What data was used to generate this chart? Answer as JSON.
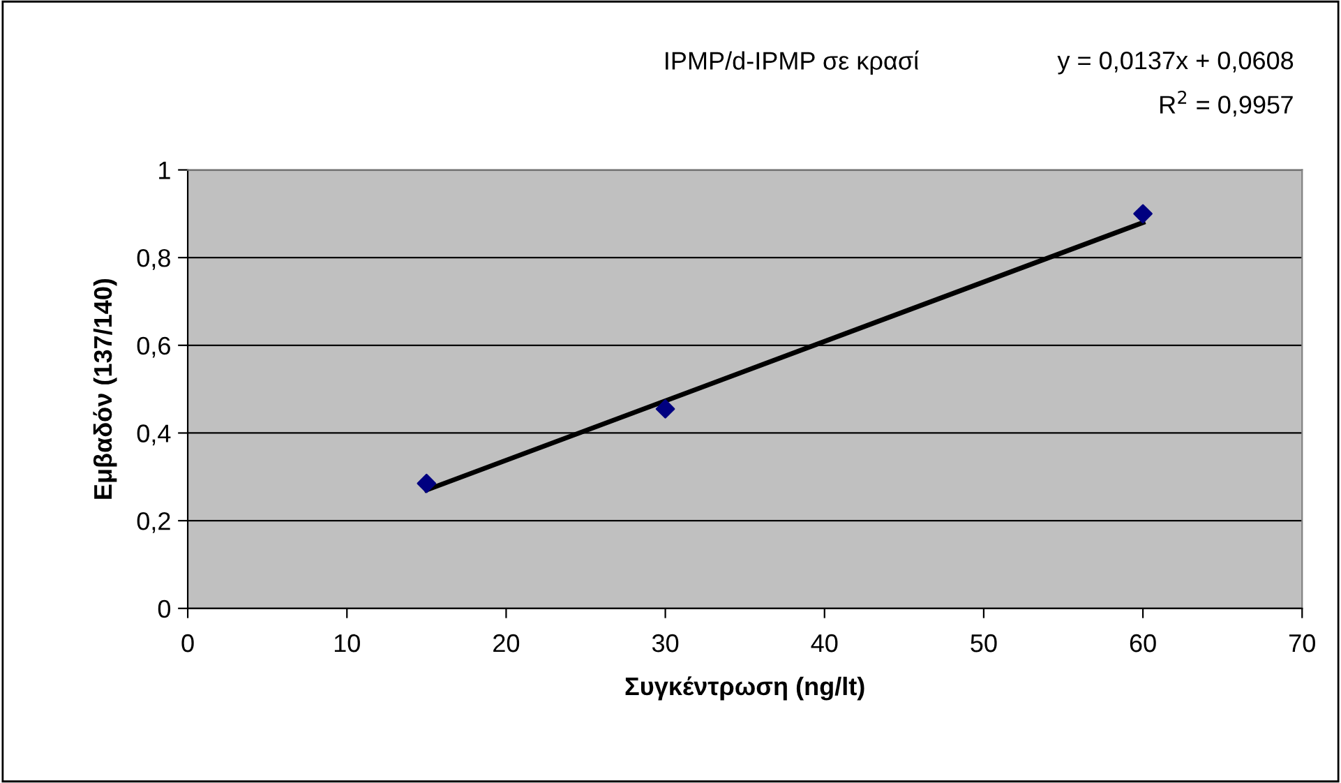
{
  "chart_data": {
    "type": "scatter",
    "title": "IPMP/d-IPMP σε κρασί",
    "xlabel": "Συγκέντρωση (ng/lt)",
    "ylabel": "Εμβαδόν (137/140)",
    "annotations": [
      "y = 0,0137x + 0,0608",
      "R$^{2}$ = 0,9957"
    ],
    "x": [
      15,
      30,
      60
    ],
    "series": [
      {
        "color": "#000080",
        "marker": "diamond",
        "values": [
          0.285,
          0.455,
          0.9
        ]
      },
      {
        "type": "line",
        "color": "#000000",
        "marker": "none",
        "line_style": "solid",
        "x": [
          15,
          60
        ],
        "values": [
          0.27,
          0.88
        ]
      }
    ],
    "xlim": [
      0,
      70
    ],
    "xticks": [
      0,
      10,
      20,
      30,
      40,
      50,
      60,
      70
    ],
    "ylim": [
      0,
      1
    ],
    "yticks": [
      0,
      {
        "value": 0.2,
        "label": "0,2"
      },
      {
        "value": 0.4,
        "label": "0,4"
      },
      {
        "value": 0.6,
        "label": "0,6"
      },
      {
        "value": 0.8,
        "label": "0,8"
      },
      1
    ],
    "grid": "y",
    "legend": false
  }
}
